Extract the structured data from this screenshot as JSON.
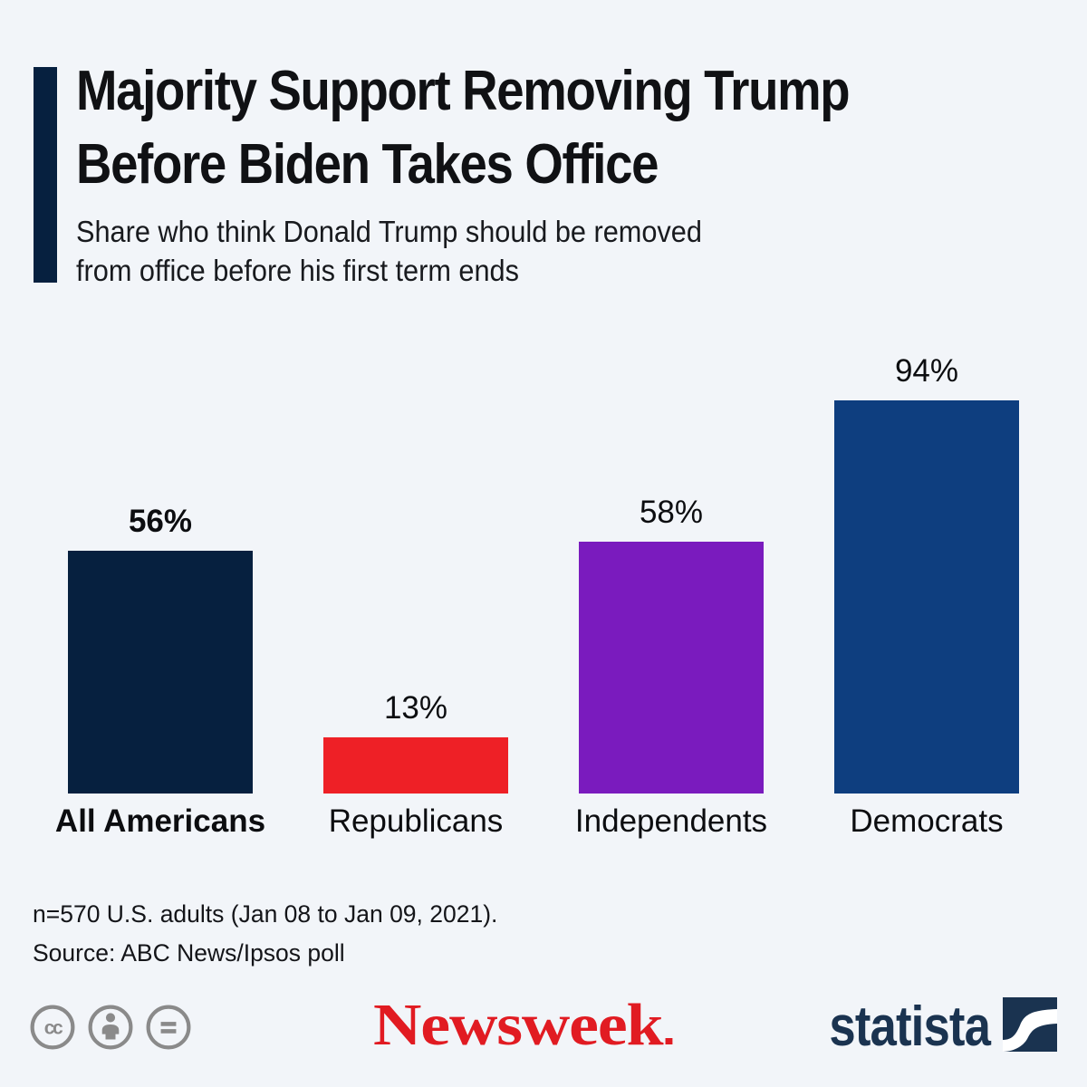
{
  "page": {
    "background_color": "#f2f5f9"
  },
  "header": {
    "accent_color": "#06203f",
    "title_line1": "Majority Support Removing Trump",
    "title_line2": "Before Biden Takes Office",
    "subtitle_line1": "Share who think Donald Trump should be removed",
    "subtitle_line2": "from office before his first term ends"
  },
  "chart_data": {
    "type": "bar",
    "title": "Majority Support Removing Trump Before Biden Takes Office",
    "subtitle": "Share who think Donald Trump should be removed from office before his first term ends",
    "categories": [
      "All Americans",
      "Republicans",
      "Independents",
      "Democrats"
    ],
    "values": [
      56,
      13,
      58,
      94
    ],
    "value_labels": [
      "56%",
      "13%",
      "58%",
      "94%"
    ],
    "bar_colors": [
      "#06203f",
      "#ee2026",
      "#7a1bbe",
      "#0e3e7f"
    ],
    "emphasized_category": "All Americans",
    "unit": "%",
    "ylim": [
      0,
      100
    ],
    "grid": false,
    "legend": "none",
    "value_label_position": "above-bar"
  },
  "footnote": {
    "line1": "n=570 U.S. adults (Jan 08 to Jan 09, 2021).",
    "line2": "Source: ABC News/Ipsos poll"
  },
  "footer": {
    "license_icons": [
      "cc-icon",
      "attribution-person-icon",
      "equal-no-derivatives-icon"
    ],
    "license_icon_color": "#8a8a8a",
    "newsweek_logo_text": "Newsweek",
    "newsweek_color": "#e11b22",
    "statista_logo_text": "statista",
    "statista_color": "#1a3350"
  }
}
